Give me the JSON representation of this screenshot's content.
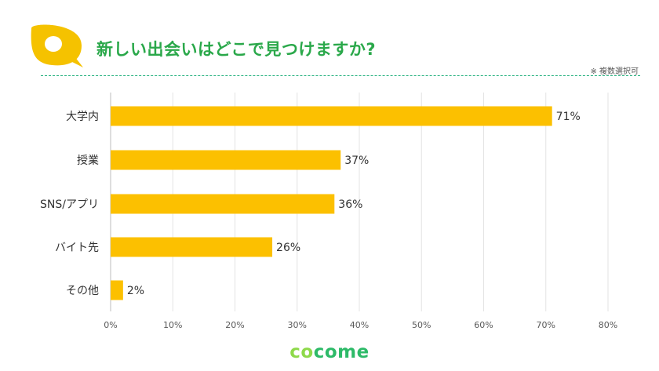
{
  "header": {
    "title": "新しい出会いはどこで見つけますか?",
    "note": "※ 複数選択可",
    "title_color": "#2aa84a",
    "logo_color": "#f5c200",
    "divider_color": "#22b07d"
  },
  "brand": {
    "name": "cocome",
    "color_light": "#8ed94a",
    "color_main": "#2dba68"
  },
  "chart_data": {
    "type": "bar",
    "orientation": "horizontal",
    "categories": [
      "大学内",
      "授業",
      "SNS/アプリ",
      "バイト先",
      "その他"
    ],
    "values": [
      71,
      37,
      36,
      26,
      2
    ],
    "value_labels": [
      "71%",
      "37%",
      "36%",
      "26%",
      "2%"
    ],
    "x_ticks": [
      0,
      10,
      20,
      30,
      40,
      50,
      60,
      70,
      80
    ],
    "x_tick_labels": [
      "0%",
      "10%",
      "20%",
      "30%",
      "40%",
      "50%",
      "60%",
      "70%",
      "80%"
    ],
    "xlim": [
      0,
      80
    ],
    "grid": true,
    "bar_color": "#fcc000",
    "title": "",
    "xlabel": "",
    "ylabel": ""
  }
}
